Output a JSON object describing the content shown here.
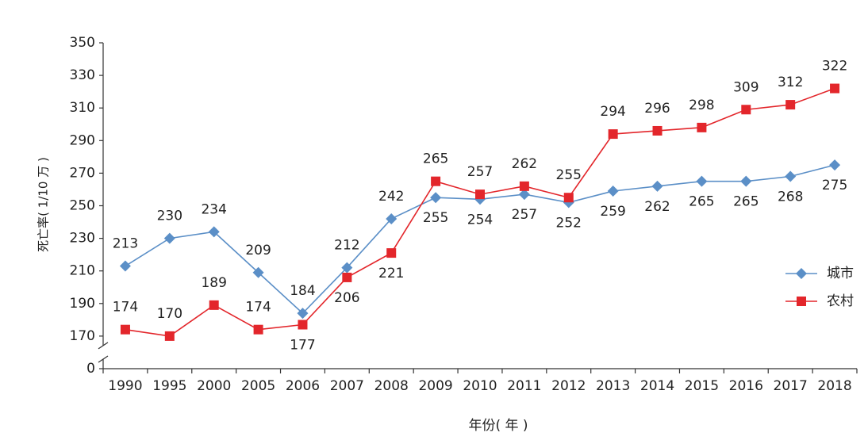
{
  "chart_data": {
    "type": "line",
    "y_label": "死亡率( 1/10 万 )",
    "x_label": "年份( 年 )",
    "categories": [
      "1990",
      "1995",
      "2000",
      "2005",
      "2006",
      "2007",
      "2008",
      "2009",
      "2010",
      "2011",
      "2012",
      "2013",
      "2014",
      "2015",
      "2016",
      "2017",
      "2018"
    ],
    "series": [
      {
        "name": "城市",
        "color": "#5b8fc7",
        "marker": "diamond",
        "values": [
          213,
          230,
          234,
          209,
          184,
          212,
          242,
          255,
          254,
          257,
          252,
          259,
          262,
          265,
          265,
          268,
          275
        ]
      },
      {
        "name": "农村",
        "color": "#e3262b",
        "marker": "square",
        "values": [
          174,
          170,
          189,
          174,
          177,
          206,
          221,
          265,
          257,
          262,
          255,
          294,
          296,
          298,
          309,
          312,
          322
        ]
      }
    ],
    "ylim": [
      0,
      350
    ],
    "y_break": [
      0,
      170
    ],
    "yticks": [
      0,
      170,
      190,
      210,
      230,
      250,
      270,
      290,
      310,
      330,
      350
    ],
    "legend": "right"
  }
}
